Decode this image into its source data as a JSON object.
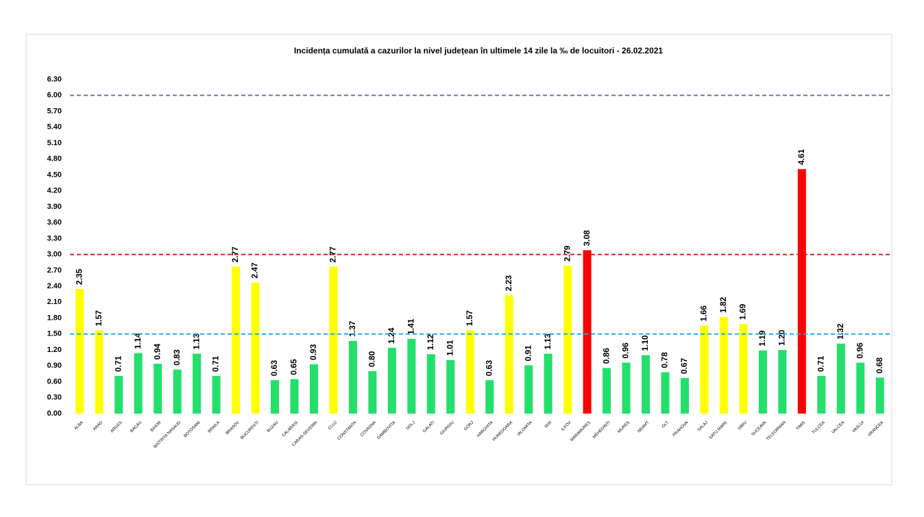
{
  "chart_data": {
    "type": "bar",
    "title": "Incidența cumulată a cazurilor la nivel județean în ultimele 14 zile    la ‰ de locuitori  - 26.02.2021",
    "categories": [
      "ALBA",
      "ARAD",
      "ARGES",
      "BACAU",
      "BIHOR",
      "BISTRITA NASAUD",
      "BOTOSANI",
      "BRAILA",
      "BRASOV",
      "BUCURESTI",
      "BUZAU",
      "CALARASI",
      "CARAS-SEVERIN",
      "CLUJ",
      "CONSTANTA",
      "COVASNA",
      "DAMBOVITA",
      "DOLJ",
      "GALATI",
      "GIURGIU",
      "GORJ",
      "HARGHITA",
      "HUNEDOARA",
      "IALOMITA",
      "IASI",
      "ILFOV",
      "MARAMURES",
      "MEHEDINTI",
      "MURES",
      "NEAMT",
      "OLT",
      "PRAHOVA",
      "SALAJ",
      "SATU MARE",
      "SIBIU",
      "SUCEAVA",
      "TELEORMAN",
      "TIMIS",
      "TULCEA",
      "VALCEA",
      "VASLUI",
      "VRANCEA"
    ],
    "values": [
      2.35,
      1.57,
      0.71,
      1.14,
      0.94,
      0.83,
      1.13,
      0.71,
      2.77,
      2.47,
      0.63,
      0.65,
      0.93,
      2.77,
      1.37,
      0.8,
      1.24,
      1.41,
      1.12,
      1.01,
      1.57,
      0.63,
      2.23,
      0.91,
      1.13,
      2.79,
      3.08,
      0.86,
      0.96,
      1.1,
      0.78,
      0.67,
      1.66,
      1.82,
      1.69,
      1.19,
      1.2,
      4.61,
      0.71,
      1.32,
      0.96,
      0.68
    ],
    "value_labels": [
      "2.35",
      "1.57",
      "0.71",
      "1.14",
      "0.94",
      "0.83",
      "1.13",
      "0.71",
      "2.77",
      "2.47",
      "0.63",
      "0.65",
      "0.93",
      "2.77",
      "1.37",
      "0.80",
      "1.24",
      "1.41",
      "1.12",
      "1.01",
      "1.57",
      "0.63",
      "2.23",
      "0.91",
      "1.13",
      "2.79",
      "3.08",
      "0.86",
      "0.96",
      "1.10",
      "0.78",
      "0.67",
      "1.66",
      "1.82",
      "1.69",
      "1.19",
      "1.20",
      "4.61",
      "0.71",
      "1.32",
      "0.96",
      "0.68"
    ],
    "colors": [
      "#ffff00",
      "#ffff00",
      "#22e06b",
      "#22e06b",
      "#22e06b",
      "#22e06b",
      "#22e06b",
      "#22e06b",
      "#ffff00",
      "#ffff00",
      "#22e06b",
      "#22e06b",
      "#22e06b",
      "#ffff00",
      "#22e06b",
      "#22e06b",
      "#22e06b",
      "#22e06b",
      "#22e06b",
      "#22e06b",
      "#ffff00",
      "#22e06b",
      "#ffff00",
      "#22e06b",
      "#22e06b",
      "#ffff00",
      "#ff0000",
      "#22e06b",
      "#22e06b",
      "#22e06b",
      "#22e06b",
      "#22e06b",
      "#ffff00",
      "#ffff00",
      "#ffff00",
      "#22e06b",
      "#22e06b",
      "#ff0000",
      "#22e06b",
      "#22e06b",
      "#22e06b",
      "#22e06b"
    ],
    "ylim": [
      0,
      6.3
    ],
    "yticks": [
      {
        "value": 0,
        "label": "0.00"
      },
      {
        "value": 0.3,
        "label": "0.30"
      },
      {
        "value": 0.6,
        "label": "0.60"
      },
      {
        "value": 0.9,
        "label": "0.90"
      },
      {
        "value": 1.2,
        "label": "1.20"
      },
      {
        "value": 1.5,
        "label": "1.50"
      },
      {
        "value": 1.8,
        "label": "1.80"
      },
      {
        "value": 2.1,
        "label": "2.10"
      },
      {
        "value": 2.4,
        "label": "2.40"
      },
      {
        "value": 2.7,
        "label": "2.70"
      },
      {
        "value": 3,
        "label": "3.00"
      },
      {
        "value": 3.3,
        "label": "3.30"
      },
      {
        "value": 3.6,
        "label": "3.60"
      },
      {
        "value": 3.9,
        "label": "3.90"
      },
      {
        "value": 4.2,
        "label": "4.20"
      },
      {
        "value": 4.5,
        "label": "4.50"
      },
      {
        "value": 4.8,
        "label": "4.80"
      },
      {
        "value": 5.1,
        "label": "5.10"
      },
      {
        "value": 5.4,
        "label": "5.40"
      },
      {
        "value": 5.7,
        "label": "5.70"
      },
      {
        "value": 6,
        "label": "6.00"
      },
      {
        "value": 6.3,
        "label": "6.30"
      }
    ],
    "reference_lines": [
      {
        "value": 1.5,
        "color": "#22aadd"
      },
      {
        "value": 3,
        "color": "#cc2222"
      },
      {
        "value": 6,
        "color": "#8866aa"
      }
    ],
    "grid": false
  }
}
